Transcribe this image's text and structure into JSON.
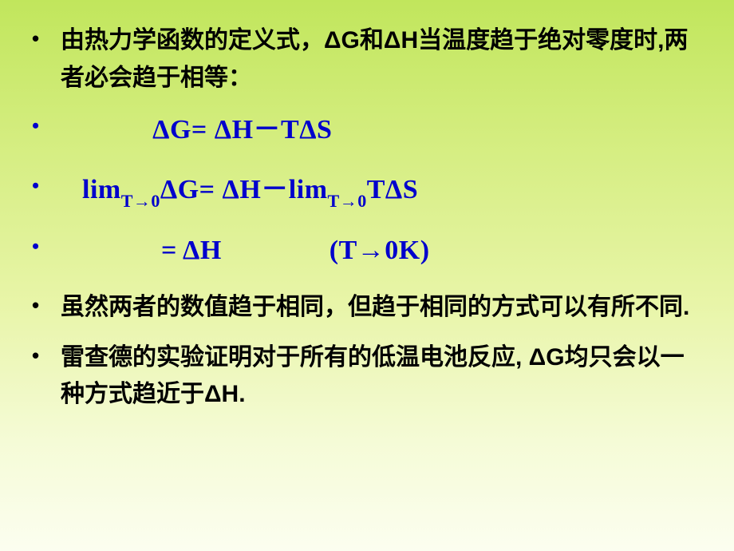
{
  "colors": {
    "text_black": "#000000",
    "text_blue": "#0000cc",
    "bg_top": "#c1e65c",
    "bg_bottom": "#fcfef0"
  },
  "typography": {
    "body_fontsize_pt": 22,
    "formula_fontsize_pt": 25,
    "body_weight": "bold",
    "formula_family": "Times New Roman",
    "body_family": "SimHei"
  },
  "lines": {
    "l1": "由热力学函数的定义式，ΔG和ΔH当温度趋于绝对零度时,两者必会趋于相等：",
    "l2_pre": "             ",
    "l2": "ΔG= ΔH－TΔS",
    "l3_pre": "   ",
    "l3a": "lim",
    "l3a_sub": "T→0",
    "l3b": "ΔG= ΔH－lim",
    "l3b_sub": "T→0",
    "l3c": "TΔS",
    "l4_pre": "              ",
    "l4": "= ΔH               (T→0K)",
    "l5": "虽然两者的数值趋于相同，但趋于相同的方式可以有所不同.",
    "l6": "雷查德的实验证明对于所有的低温电池反应, ΔG均只会以一种方式趋近于ΔH."
  },
  "bullet": "•"
}
